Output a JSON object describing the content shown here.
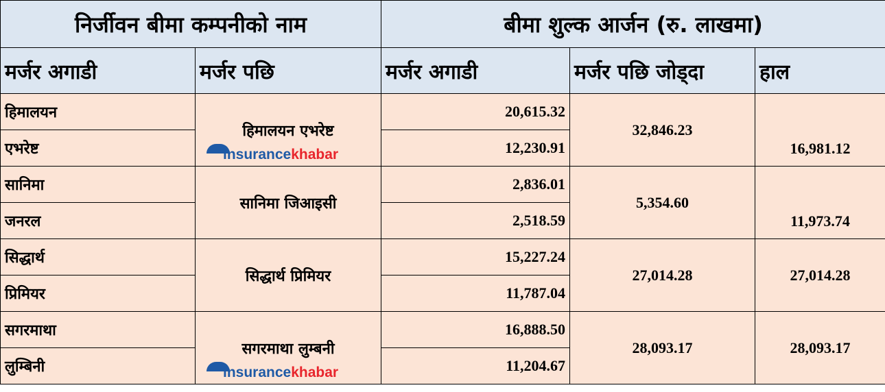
{
  "header": {
    "company_name": "निर्जीवन बीमा कम्पनीको नाम",
    "premium": "बीमा शुल्क आर्जन (रु. लाखमा)",
    "before": "मर्जर अगाडी",
    "after": "मर्जर पछि",
    "premium_before": "मर्जर अगाडी",
    "premium_after_sum": "मर्जर पछि जोड्दा",
    "current": "हाल"
  },
  "watermark": {
    "part1": "insurance",
    "part2": "khabar",
    "colors": [
      "#1f5aa6",
      "#e8252c"
    ]
  },
  "colors": {
    "header_bg": "#dce6f1",
    "body_bg": "#fce4d6"
  },
  "groups": [
    {
      "before": [
        "हिमालयन",
        "एभरेष्ट"
      ],
      "after": "हिमालयन एभरेष्ट",
      "premiums": [
        "20,615.32",
        "12,230.91"
      ],
      "sum": "32,846.23",
      "current": "16,981.12"
    },
    {
      "before": [
        "सानिमा",
        "जनरल"
      ],
      "after": "सानिमा जिआइसी",
      "premiums": [
        "2,836.01",
        "2,518.59"
      ],
      "sum": "5,354.60",
      "current": "11,973.74"
    },
    {
      "before": [
        "सिद्धार्थ",
        "प्रिमियर"
      ],
      "after": "सिद्धार्थ प्रिमियर",
      "premiums": [
        "15,227.24",
        "11,787.04"
      ],
      "sum": "27,014.28",
      "current": "27,014.28"
    },
    {
      "before": [
        "सगरमाथा",
        "लुम्बिनी"
      ],
      "after": "सगरमाथा लुम्बनी",
      "premiums": [
        "16,888.50",
        "11,204.67"
      ],
      "sum": "28,093.17",
      "current": "28,093.17"
    }
  ]
}
